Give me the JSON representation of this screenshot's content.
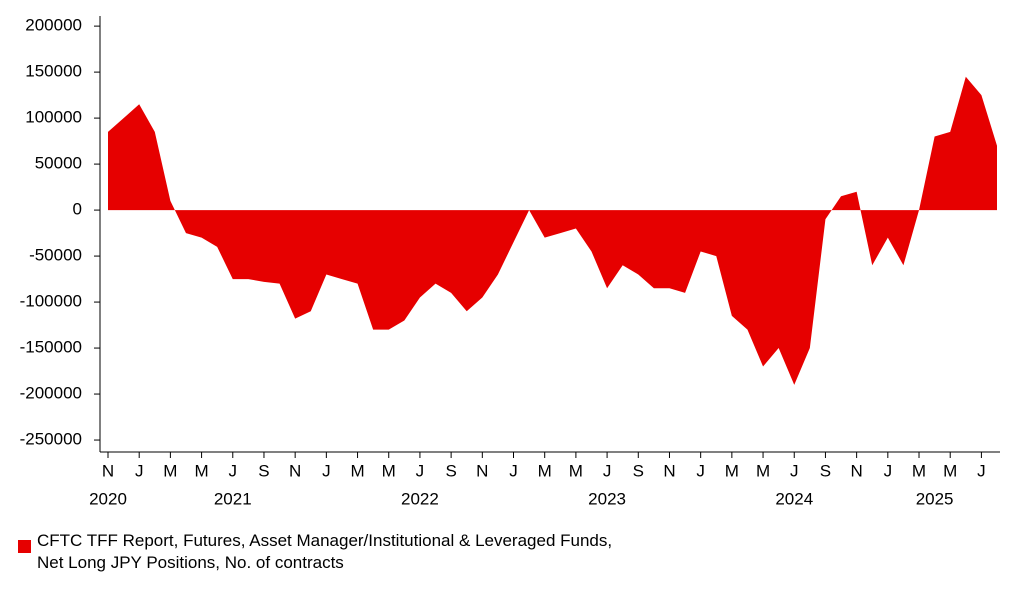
{
  "chart_data": {
    "type": "area",
    "color": "#e60000",
    "x": [
      "2020-11",
      "2020-12",
      "2021-01",
      "2021-02",
      "2021-03",
      "2021-04",
      "2021-05",
      "2021-06",
      "2021-07",
      "2021-08",
      "2021-09",
      "2021-10",
      "2021-11",
      "2021-12",
      "2022-01",
      "2022-02",
      "2022-03",
      "2022-04",
      "2022-05",
      "2022-06",
      "2022-07",
      "2022-08",
      "2022-09",
      "2022-10",
      "2022-11",
      "2022-12",
      "2023-01",
      "2023-02",
      "2023-03",
      "2023-04",
      "2023-05",
      "2023-06",
      "2023-07",
      "2023-08",
      "2023-09",
      "2023-10",
      "2023-11",
      "2023-12",
      "2024-01",
      "2024-02",
      "2024-03",
      "2024-04",
      "2024-05",
      "2024-06",
      "2024-07",
      "2024-08",
      "2024-09",
      "2024-10",
      "2024-11",
      "2024-12",
      "2025-01",
      "2025-02",
      "2025-03",
      "2025-04",
      "2025-05",
      "2025-06",
      "2025-07",
      "2025-08"
    ],
    "series": [
      {
        "name": "CFTC TFF Report, Futures, Asset Manager/Institutional & Leveraged Funds, Net Long JPY Positions, No. of contracts",
        "color": "#e60000",
        "values": [
          85000,
          100000,
          115000,
          85000,
          10000,
          -25000,
          -30000,
          -40000,
          -75000,
          -75000,
          -78000,
          -80000,
          -118000,
          -110000,
          -70000,
          -75000,
          -80000,
          -130000,
          -130000,
          -120000,
          -95000,
          -80000,
          -90000,
          -110000,
          -95000,
          -70000,
          -35000,
          0,
          -30000,
          -25000,
          -20000,
          -45000,
          -85000,
          -60000,
          -70000,
          -85000,
          -85000,
          -90000,
          -45000,
          -50000,
          -115000,
          -130000,
          -170000,
          -150000,
          -190000,
          -150000,
          -10000,
          15000,
          20000,
          -60000,
          -30000,
          -60000,
          0,
          80000,
          85000,
          145000,
          125000,
          70000
        ]
      }
    ],
    "xlim": [
      "2020-11",
      "2025-08"
    ],
    "xticks": [
      {
        "value": "2020-11",
        "label": "N"
      },
      {
        "value": "2021-01",
        "label": "J"
      },
      {
        "value": "2021-03",
        "label": "M"
      },
      {
        "value": "2021-05",
        "label": "M"
      },
      {
        "value": "2021-07",
        "label": "J"
      },
      {
        "value": "2021-09",
        "label": "S"
      },
      {
        "value": "2021-11",
        "label": "N"
      },
      {
        "value": "2022-01",
        "label": "J"
      },
      {
        "value": "2022-03",
        "label": "M"
      },
      {
        "value": "2022-05",
        "label": "M"
      },
      {
        "value": "2022-07",
        "label": "J"
      },
      {
        "value": "2022-09",
        "label": "S"
      },
      {
        "value": "2022-11",
        "label": "N"
      },
      {
        "value": "2023-01",
        "label": "J"
      },
      {
        "value": "2023-03",
        "label": "M"
      },
      {
        "value": "2023-05",
        "label": "M"
      },
      {
        "value": "2023-07",
        "label": "J"
      },
      {
        "value": "2023-09",
        "label": "S"
      },
      {
        "value": "2023-11",
        "label": "N"
      },
      {
        "value": "2024-01",
        "label": "J"
      },
      {
        "value": "2024-03",
        "label": "M"
      },
      {
        "value": "2024-05",
        "label": "M"
      },
      {
        "value": "2024-07",
        "label": "J"
      },
      {
        "value": "2024-09",
        "label": "S"
      },
      {
        "value": "2024-11",
        "label": "N"
      },
      {
        "value": "2025-01",
        "label": "J"
      },
      {
        "value": "2025-03",
        "label": "M"
      },
      {
        "value": "2025-05",
        "label": "M"
      },
      {
        "value": "2025-07",
        "label": "J"
      }
    ],
    "year_labels": [
      {
        "value": "2020-11",
        "label": "2020"
      },
      {
        "value": "2021-07",
        "label": "2021"
      },
      {
        "value": "2022-07",
        "label": "2022"
      },
      {
        "value": "2023-07",
        "label": "2023"
      },
      {
        "value": "2024-07",
        "label": "2024"
      },
      {
        "value": "2025-04",
        "label": "2025"
      }
    ],
    "ylim": [
      -263000,
      211000
    ],
    "yticks": [
      200000,
      150000,
      100000,
      50000,
      0,
      -50000,
      -100000,
      -150000,
      -200000,
      -250000
    ]
  }
}
